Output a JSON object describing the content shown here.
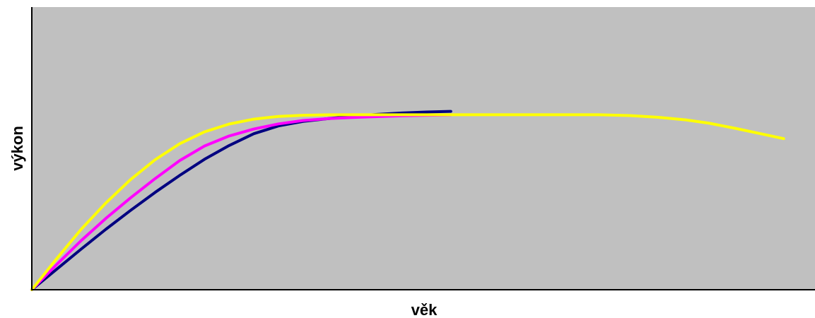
{
  "chart_data": {
    "type": "line",
    "title": "",
    "xlabel": "věk",
    "ylabel": "výkon",
    "xlim": [
      0,
      1
    ],
    "ylim": [
      0,
      1
    ],
    "grid": false,
    "legend": "none",
    "plot_background": "#c0c0c0",
    "series": [
      {
        "color": "#000080",
        "points": [
          [
            0,
            0
          ],
          [
            0.0315,
            0.0719
          ],
          [
            0.063,
            0.1438
          ],
          [
            0.0945,
            0.2138
          ],
          [
            0.126,
            0.2805
          ],
          [
            0.1575,
            0.3445
          ],
          [
            0.189,
            0.4048
          ],
          [
            0.2205,
            0.4615
          ],
          [
            0.252,
            0.5102
          ],
          [
            0.2835,
            0.5521
          ],
          [
            0.315,
            0.5796
          ],
          [
            0.3465,
            0.5954
          ],
          [
            0.378,
            0.6052
          ],
          [
            0.4095,
            0.6135
          ],
          [
            0.441,
            0.6202
          ],
          [
            0.4725,
            0.6252
          ],
          [
            0.504,
            0.6287
          ],
          [
            0.535,
            0.6309
          ]
        ]
      },
      {
        "color": "#ff00ff",
        "points": [
          [
            0,
            0
          ],
          [
            0.0315,
            0.0885
          ],
          [
            0.063,
            0.1737
          ],
          [
            0.0945,
            0.2523
          ],
          [
            0.126,
            0.3247
          ],
          [
            0.1575,
            0.3932
          ],
          [
            0.189,
            0.4573
          ],
          [
            0.2205,
            0.5084
          ],
          [
            0.252,
            0.544
          ],
          [
            0.2835,
            0.5684
          ],
          [
            0.315,
            0.5868
          ],
          [
            0.3465,
            0.5988
          ],
          [
            0.378,
            0.6052
          ],
          [
            0.4095,
            0.6094
          ],
          [
            0.441,
            0.6124
          ],
          [
            0.4725,
            0.6152
          ],
          [
            0.504,
            0.6172
          ],
          [
            0.535,
            0.6185
          ]
        ]
      },
      {
        "color": "#ffff00",
        "points": [
          [
            0,
            0
          ],
          [
            0.0315,
            0.109
          ],
          [
            0.063,
            0.2138
          ],
          [
            0.0945,
            0.3067
          ],
          [
            0.126,
            0.3896
          ],
          [
            0.1575,
            0.4599
          ],
          [
            0.189,
            0.5168
          ],
          [
            0.2205,
            0.5586
          ],
          [
            0.252,
            0.5862
          ],
          [
            0.2835,
            0.6036
          ],
          [
            0.315,
            0.6132
          ],
          [
            0.3465,
            0.6172
          ],
          [
            0.378,
            0.6187
          ],
          [
            0.4095,
            0.6189
          ],
          [
            0.441,
            0.6189
          ],
          [
            0.4725,
            0.6189
          ],
          [
            0.504,
            0.6189
          ],
          [
            0.535,
            0.6189
          ],
          [
            0.598,
            0.6189
          ],
          [
            0.661,
            0.6189
          ],
          [
            0.724,
            0.6189
          ],
          [
            0.765,
            0.616
          ],
          [
            0.8,
            0.61
          ],
          [
            0.835,
            0.601
          ],
          [
            0.865,
            0.589
          ],
          [
            0.9,
            0.57
          ],
          [
            0.932,
            0.551
          ],
          [
            0.96,
            0.5344
          ]
        ]
      }
    ]
  }
}
